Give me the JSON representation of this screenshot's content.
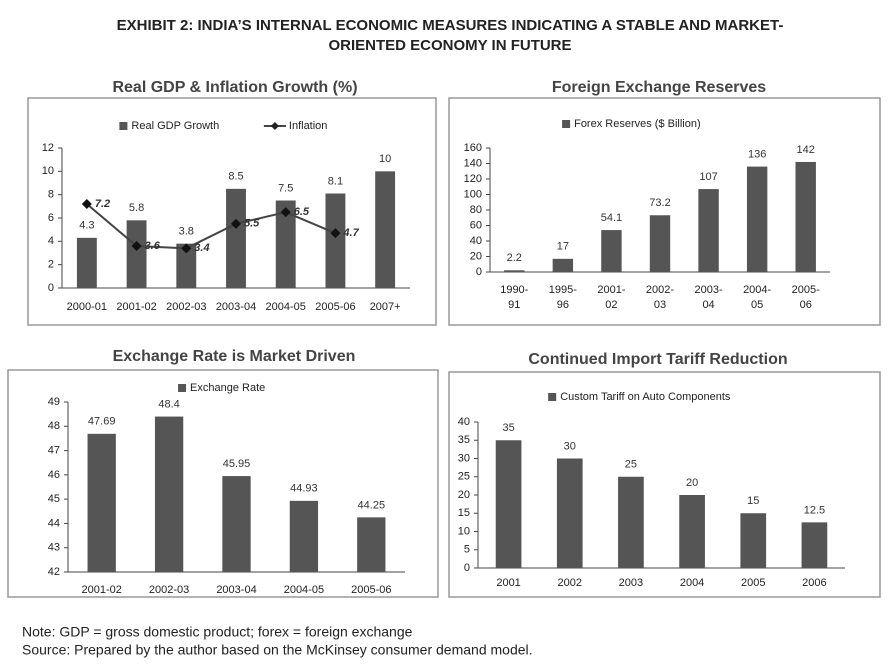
{
  "title_lines": [
    "EXHIBIT 2: INDIA’S INTERNAL ECONOMIC MEASURES INDICATING A STABLE AND MARKET-",
    "ORIENTED ECONOMY IN FUTURE"
  ],
  "notes": [
    "Note: GDP = gross domestic product; forex = foreign exchange",
    "Source: Prepared by the author based on the McKinsey consumer demand model."
  ],
  "chart_data": [
    {
      "type": "bar-line",
      "title": "Real GDP & Inflation Growth (%)",
      "categories": [
        "2000-01",
        "2001-02",
        "2002-03",
        "2003-04",
        "2004-05",
        "2005-06",
        "2007+"
      ],
      "series": [
        {
          "name": "Real GDP Growth",
          "color": "#555555",
          "kind": "bar",
          "values": [
            4.3,
            5.8,
            3.8,
            8.5,
            7.5,
            8.1,
            10
          ]
        },
        {
          "name": "Inflation",
          "color": "#444444",
          "kind": "line",
          "values": [
            7.2,
            3.6,
            3.4,
            5.5,
            6.5,
            4.7,
            null
          ]
        }
      ],
      "ylim": [
        0,
        12
      ],
      "yticks": [
        0,
        2,
        4,
        6,
        8,
        10,
        12
      ],
      "grid": false
    },
    {
      "type": "bar",
      "title": "Foreign Exchange Reserves",
      "categories": [
        [
          "1990-",
          "91"
        ],
        [
          "1995-",
          "96"
        ],
        [
          "2001-",
          "02"
        ],
        [
          "2002-",
          "03"
        ],
        [
          "2003-",
          "04"
        ],
        [
          "2004-",
          "05"
        ],
        [
          "2005-",
          "06"
        ]
      ],
      "series": [
        {
          "name": "Forex Reserves ($ Billion)",
          "color": "#555555",
          "values": [
            2.2,
            17,
            54.1,
            73.2,
            107,
            136,
            142
          ]
        }
      ],
      "ylim": [
        0,
        160
      ],
      "yticks": [
        0,
        20,
        40,
        60,
        80,
        100,
        120,
        140,
        160
      ],
      "grid": false
    },
    {
      "type": "bar",
      "title": "Exchange Rate is Market Driven",
      "categories": [
        "2001-02",
        "2002-03",
        "2003-04",
        "2004-05",
        "2005-06"
      ],
      "series": [
        {
          "name": "Exchange Rate",
          "color": "#555555",
          "values": [
            47.69,
            48.4,
            45.95,
            44.93,
            44.25
          ]
        }
      ],
      "ylim": [
        42,
        49
      ],
      "yticks": [
        42,
        43,
        44,
        45,
        46,
        47,
        48,
        49
      ],
      "grid": false
    },
    {
      "type": "bar",
      "title": "Continued Import Tariff Reduction",
      "categories": [
        "2001",
        "2002",
        "2003",
        "2004",
        "2005",
        "2006"
      ],
      "series": [
        {
          "name": "Custom Tariff on Auto Components",
          "color": "#555555",
          "values": [
            35,
            30,
            25,
            20,
            15,
            12.5
          ]
        }
      ],
      "ylim": [
        0,
        40
      ],
      "yticks": [
        0,
        5,
        10,
        15,
        20,
        25,
        30,
        35,
        40
      ],
      "grid": false
    }
  ]
}
